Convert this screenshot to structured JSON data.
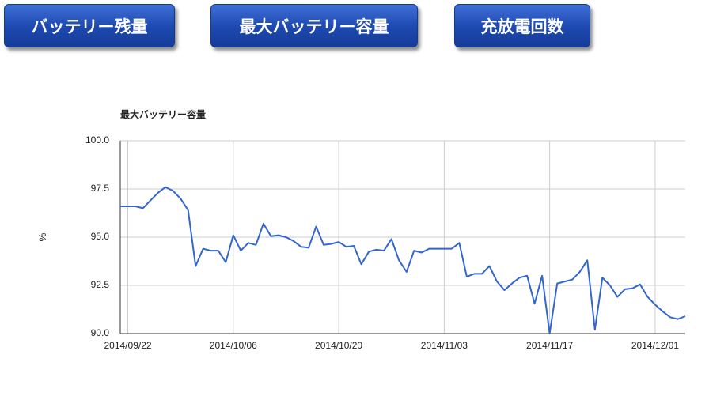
{
  "buttons": [
    "バッテリー残量",
    "最大バッテリー容量",
    "充放電回数"
  ],
  "chart_data": {
    "type": "line",
    "title": "最大バッテリー容量",
    "ylabel": "%",
    "x": [
      "2014/09/21",
      "2014/09/22",
      "2014/09/23",
      "2014/09/24",
      "2014/09/25",
      "2014/09/26",
      "2014/09/27",
      "2014/09/28",
      "2014/09/29",
      "2014/09/30",
      "2014/10/01",
      "2014/10/02",
      "2014/10/03",
      "2014/10/04",
      "2014/10/05",
      "2014/10/06",
      "2014/10/07",
      "2014/10/08",
      "2014/10/09",
      "2014/10/10",
      "2014/10/11",
      "2014/10/12",
      "2014/10/13",
      "2014/10/14",
      "2014/10/15",
      "2014/10/16",
      "2014/10/17",
      "2014/10/18",
      "2014/10/19",
      "2014/10/20",
      "2014/10/21",
      "2014/10/22",
      "2014/10/23",
      "2014/10/24",
      "2014/10/25",
      "2014/10/26",
      "2014/10/27",
      "2014/10/28",
      "2014/10/29",
      "2014/10/30",
      "2014/10/31",
      "2014/11/01",
      "2014/11/02",
      "2014/11/03",
      "2014/11/04",
      "2014/11/05",
      "2014/11/06",
      "2014/11/07",
      "2014/11/08",
      "2014/11/09",
      "2014/11/10",
      "2014/11/11",
      "2014/11/12",
      "2014/11/13",
      "2014/11/14",
      "2014/11/15",
      "2014/11/16",
      "2014/11/17",
      "2014/11/18",
      "2014/11/19",
      "2014/11/20",
      "2014/11/21",
      "2014/11/22",
      "2014/11/23",
      "2014/11/24",
      "2014/11/25",
      "2014/11/26",
      "2014/11/27",
      "2014/11/28",
      "2014/11/29",
      "2014/11/30",
      "2014/12/01",
      "2014/12/02",
      "2014/12/03",
      "2014/12/04",
      "2014/12/05"
    ],
    "series": [
      {
        "name": "最大バッテリー容量",
        "color": "#3366cc",
        "values": [
          96.6,
          96.6,
          96.6,
          96.5,
          96.9,
          97.3,
          97.6,
          97.4,
          97.0,
          96.4,
          93.5,
          94.4,
          94.3,
          94.3,
          93.7,
          95.1,
          94.3,
          94.7,
          94.6,
          95.7,
          95.05,
          95.1,
          95.0,
          94.8,
          94.5,
          94.45,
          95.55,
          94.6,
          94.65,
          94.75,
          94.5,
          94.55,
          93.6,
          94.25,
          94.35,
          94.3,
          94.9,
          93.8,
          93.2,
          94.3,
          94.2,
          94.4,
          94.4,
          94.4,
          94.4,
          94.7,
          92.95,
          93.1,
          93.1,
          93.5,
          92.7,
          92.25,
          92.6,
          92.9,
          93.0,
          91.55,
          93.0,
          90.0,
          92.6,
          92.7,
          92.8,
          93.2,
          93.8,
          90.2,
          92.9,
          92.5,
          91.9,
          92.3,
          92.35,
          92.55,
          91.9,
          91.5,
          91.15,
          90.85,
          90.75,
          90.9
        ]
      }
    ],
    "xlim": [
      "2014/09/21",
      "2014/12/05"
    ],
    "xticks": [
      "2014/09/22",
      "2014/10/06",
      "2014/10/20",
      "2014/11/03",
      "2014/11/17",
      "2014/12/01"
    ],
    "ylim": [
      90,
      100
    ],
    "yticks": [
      {
        "value": 90,
        "label": "90.0"
      },
      {
        "value": 92.5,
        "label": "92.5"
      },
      {
        "value": 95,
        "label": "95.0"
      },
      {
        "value": 97.5,
        "label": "97.5"
      },
      {
        "value": 100,
        "label": "100.0"
      }
    ],
    "grid": true
  }
}
